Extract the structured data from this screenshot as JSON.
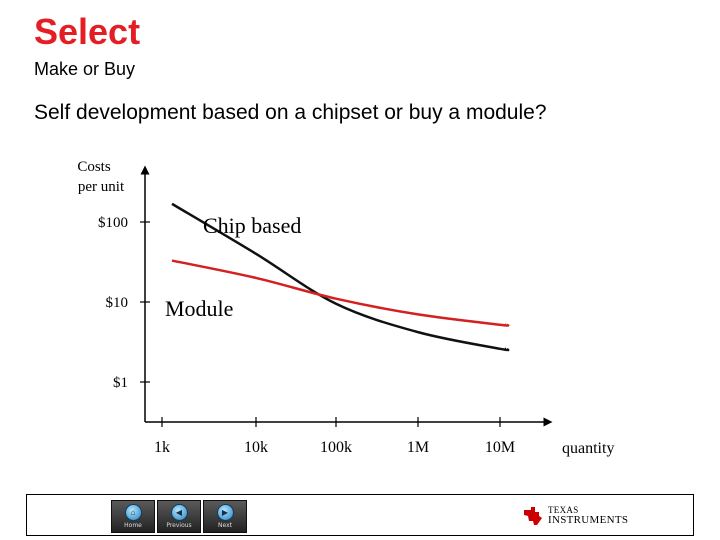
{
  "slide": {
    "title": "Select",
    "subtitle": "Make or Buy",
    "question": "Self development based on a chipset or buy a module?"
  },
  "chart_data": {
    "type": "line",
    "ylabel_lines": [
      "Costs",
      "per unit"
    ],
    "xlabel": "quantity",
    "yscale": "log",
    "y_ticks": [
      {
        "value": 100,
        "label": "$100"
      },
      {
        "value": 10,
        "label": "$10"
      },
      {
        "value": 1,
        "label": "$1"
      }
    ],
    "x_ticks": [
      "1k",
      "10k",
      "100k",
      "1M",
      "10M"
    ],
    "x": [
      "1k",
      "10k",
      "100k",
      "1M",
      "10M"
    ],
    "series": [
      {
        "name": "Chip based",
        "color": "#111111",
        "values": [
          200,
          40,
          9.5,
          4.2,
          2.6
        ]
      },
      {
        "name": "Module",
        "color": "#d42020",
        "values": [
          35,
          20,
          11,
          7,
          5.2
        ]
      }
    ]
  },
  "footer": {
    "nav": [
      {
        "label": "Home",
        "icon": "home-icon",
        "glyph": "⌂"
      },
      {
        "label": "Previous",
        "icon": "previous-icon",
        "glyph": "◀"
      },
      {
        "label": "Next",
        "icon": "next-icon",
        "glyph": "▶"
      }
    ],
    "logo": {
      "line1": "TEXAS",
      "line2": "INSTRUMENTS",
      "color": "#cc0000"
    }
  }
}
